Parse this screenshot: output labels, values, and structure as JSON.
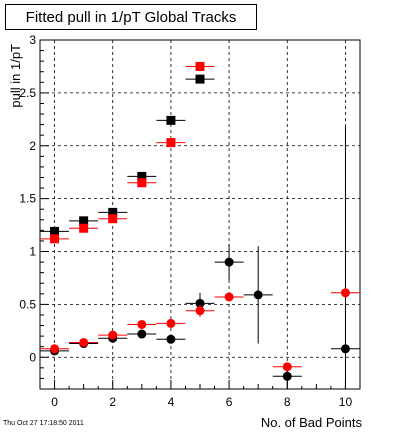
{
  "chart_data": {
    "type": "scatter",
    "title": "Fitted pull in 1/pT  Global Tracks",
    "xlabel": "No. of Bad Points",
    "ylabel": "pull in 1/pT",
    "xlim": [
      -0.5,
      10.5
    ],
    "ylim": [
      -0.3,
      3.0
    ],
    "grid": true,
    "x_ticks": [
      0,
      2,
      4,
      6,
      8,
      10
    ],
    "y_ticks": [
      0,
      0.5,
      1,
      1.5,
      2,
      2.5,
      3
    ],
    "series": [
      {
        "marker": "square",
        "color": "#000000",
        "points": [
          {
            "x": 0,
            "y": 1.19
          },
          {
            "x": 1,
            "y": 1.29
          },
          {
            "x": 2,
            "y": 1.37
          },
          {
            "x": 3,
            "y": 1.71
          },
          {
            "x": 4,
            "y": 2.24
          },
          {
            "x": 5,
            "y": 2.63
          }
        ]
      },
      {
        "marker": "square",
        "color": "#ff0000",
        "points": [
          {
            "x": 0,
            "y": 1.12
          },
          {
            "x": 1,
            "y": 1.22
          },
          {
            "x": 2,
            "y": 1.31
          },
          {
            "x": 3,
            "y": 1.65
          },
          {
            "x": 4,
            "y": 2.03
          },
          {
            "x": 5,
            "y": 2.75
          }
        ]
      },
      {
        "marker": "circle",
        "color": "#000000",
        "points": [
          {
            "x": 0,
            "y": 0.06,
            "err": 0.02
          },
          {
            "x": 1,
            "y": 0.13,
            "err": 0.02
          },
          {
            "x": 2,
            "y": 0.18,
            "err": 0.03
          },
          {
            "x": 3,
            "y": 0.22,
            "err": 0.03
          },
          {
            "x": 4,
            "y": 0.17,
            "err": 0.04
          },
          {
            "x": 5,
            "y": 0.51,
            "err": 0.1
          },
          {
            "x": 6,
            "y": 0.9,
            "err": 0.17
          },
          {
            "x": 7,
            "y": 0.59,
            "err": 0.46
          },
          {
            "x": 8,
            "y": -0.18,
            "err": 0.12
          },
          {
            "x": 10,
            "y": 0.08,
            "err": 2.1
          }
        ]
      },
      {
        "marker": "circle",
        "color": "#ff0000",
        "points": [
          {
            "x": 0,
            "y": 0.08,
            "err": 0.02
          },
          {
            "x": 1,
            "y": 0.14,
            "err": 0.02
          },
          {
            "x": 2,
            "y": 0.21,
            "err": 0.03
          },
          {
            "x": 3,
            "y": 0.31,
            "err": 0.03
          },
          {
            "x": 4,
            "y": 0.32,
            "err": 0.04
          },
          {
            "x": 5,
            "y": 0.44,
            "err": 0.06
          },
          {
            "x": 6,
            "y": 0.57,
            "err": 0.0
          },
          {
            "x": 8,
            "y": -0.09,
            "err": 0.0
          },
          {
            "x": 10,
            "y": 0.61,
            "err": 0.0
          }
        ]
      }
    ],
    "timestamp": "Thu Oct 27 17:18:50 2011"
  }
}
